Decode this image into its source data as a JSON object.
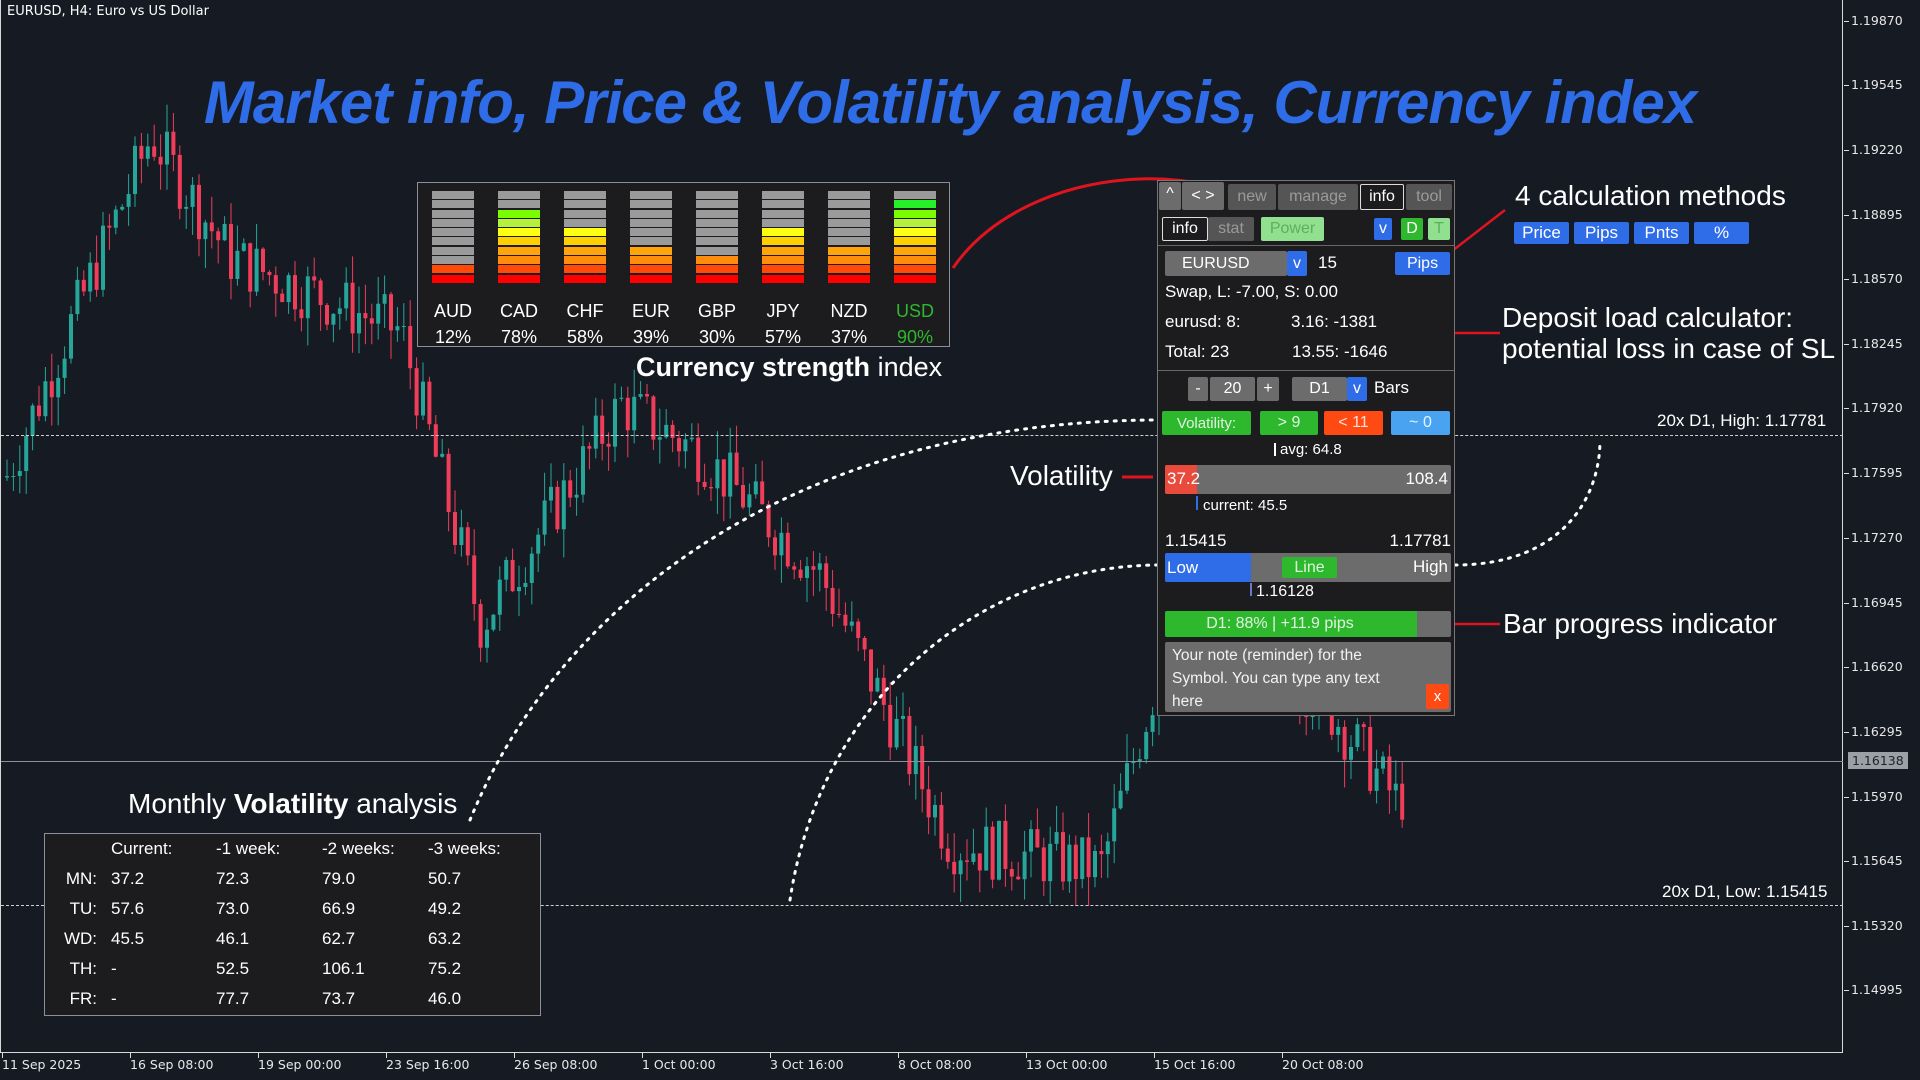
{
  "window": {
    "title": "EURUSD, H4:  Euro vs US Dollar"
  },
  "headline": "Market info, Price & Volatility analysis, Currency index",
  "colors": {
    "accent_blue": "#2f6de8",
    "bull": "#26a69a",
    "bear": "#ef3d5a",
    "annotation_red": "#e0141e",
    "green": "#2eb82e",
    "orange_red": "#ff4a14"
  },
  "price_axis": {
    "ticks": [
      "1.19870",
      "1.19545",
      "1.19220",
      "1.18895",
      "1.18570",
      "1.18245",
      "1.17920",
      "1.17595",
      "1.17270",
      "1.16945",
      "1.16620",
      "1.16295",
      "1.15970",
      "1.15645",
      "1.15320",
      "1.14995"
    ],
    "current_price": "1.16138"
  },
  "time_axis": {
    "ticks": [
      "11 Sep 2025",
      "16 Sep 08:00",
      "19 Sep 00:00",
      "23 Sep 16:00",
      "26 Sep 08:00",
      "1 Oct 00:00",
      "3 Oct 16:00",
      "8 Oct 08:00",
      "13 Oct 00:00",
      "15 Oct 16:00",
      "20 Oct 08:00"
    ]
  },
  "levels": {
    "high_label": "20x D1, High: 1.17781",
    "low_label": "20x D1, Low: 1.15415"
  },
  "currency_strength": {
    "caption_bold": "Currency strength",
    "caption_rest": " index",
    "currencies": [
      {
        "name": "AUD",
        "pct": "12%",
        "level": 2,
        "highlight": false
      },
      {
        "name": "CAD",
        "pct": "78%",
        "level": 8,
        "highlight": false
      },
      {
        "name": "CHF",
        "pct": "58%",
        "level": 6,
        "highlight": false
      },
      {
        "name": "EUR",
        "pct": "39%",
        "level": 4,
        "highlight": false
      },
      {
        "name": "GBP",
        "pct": "30%",
        "level": 3,
        "highlight": false
      },
      {
        "name": "JPY",
        "pct": "57%",
        "level": 6,
        "highlight": false
      },
      {
        "name": "NZD",
        "pct": "37%",
        "level": 4,
        "highlight": false
      },
      {
        "name": "USD",
        "pct": "90%",
        "level": 9,
        "highlight": true
      }
    ]
  },
  "panel": {
    "top_tabs": {
      "collapse": "^",
      "arrows": "< >",
      "new": "new",
      "manage": "manage",
      "info": "info",
      "tool": "tool"
    },
    "sub_tabs": {
      "info": "info",
      "stat": "stat",
      "power": "Power",
      "v": "v",
      "d": "D",
      "t": "T"
    },
    "symbol": {
      "value": "EURUSD",
      "dropdown": "v",
      "sl": "15",
      "method": "Pips"
    },
    "swap": "Swap, L: -7.00, S: 0.00",
    "deposit": [
      {
        "left": "eurusd: 8:",
        "right": "3.16: -1381"
      },
      {
        "left": "Total: 23",
        "right": "13.55: -1646"
      }
    ],
    "bars": {
      "minus": "-",
      "count": "20",
      "plus": "+",
      "tf": "D1",
      "tf_dropdown": "v",
      "label": "Bars"
    },
    "volatility": {
      "label": "Volatility:",
      "above": "> 9",
      "below": "< 11",
      "equal": "~ 0",
      "avg": "avg: 64.8",
      "min": "37.2",
      "max": "108.4",
      "current": "current: 45.5"
    },
    "range": {
      "low_value": "1.15415",
      "high_value": "1.17781",
      "low": "Low",
      "line": "Line",
      "high": "High",
      "current": "1.16128"
    },
    "progress": {
      "text": "D1: 88%  |  +11.9 pips",
      "percent": 88
    },
    "note": {
      "text": "Your note (reminder) for the Symbol. You can type any text here",
      "close": "x"
    }
  },
  "annotations": {
    "calc_methods": "4 calculation methods",
    "methods": [
      "Price",
      "Pips",
      "Pnts",
      "%"
    ],
    "deposit_line1": "Deposit load calculator:",
    "deposit_line2": "potential loss in case of SL",
    "volatility": "Volatility",
    "bar_progress": "Bar progress indicator"
  },
  "volatility_table": {
    "caption_pre": "Monthly ",
    "caption_bold": "Volatility",
    "caption_post": " analysis",
    "headers": [
      "Current:",
      "-1 week:",
      "-2 weeks:",
      "-3 weeks:"
    ],
    "rows": [
      {
        "day": "MN:",
        "values": [
          "37.2",
          "72.3",
          "79.0",
          "50.7"
        ]
      },
      {
        "day": "TU:",
        "values": [
          "57.6",
          "73.0",
          "66.9",
          "49.2"
        ]
      },
      {
        "day": "WD:",
        "values": [
          "45.5",
          "46.1",
          "62.7",
          "63.2"
        ]
      },
      {
        "day": "TH:",
        "values": [
          "-",
          "52.5",
          "106.1",
          "75.2"
        ]
      },
      {
        "day": "FR:",
        "values": [
          "-",
          "77.7",
          "73.7",
          "46.0"
        ]
      }
    ]
  }
}
